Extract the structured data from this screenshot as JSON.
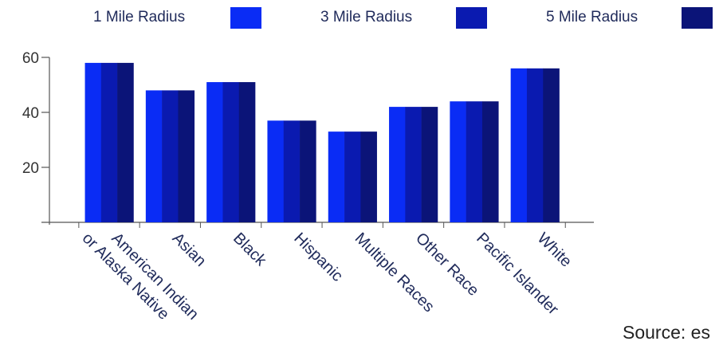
{
  "source_text": "Source: es",
  "colors": {
    "axis": "#555555",
    "text": "#1f2a5a"
  },
  "chart_data": {
    "type": "bar",
    "categories": [
      [
        "American Indian",
        "or Alaska Native"
      ],
      [
        "Asian"
      ],
      [
        "Black"
      ],
      [
        "Hispanic"
      ],
      [
        "Multiple Races"
      ],
      [
        "Other Race"
      ],
      [
        "Pacific Islander"
      ],
      [
        "White"
      ]
    ],
    "series": [
      {
        "name": "1 Mile Radius",
        "color": "#0a2cf5",
        "values": [
          58,
          48,
          51,
          37,
          33,
          42,
          44,
          56
        ]
      },
      {
        "name": "3 Mile Radius",
        "color": "#0a1ab0",
        "values": [
          58,
          48,
          51,
          37,
          33,
          42,
          44,
          56
        ]
      },
      {
        "name": "5 Mile Radius",
        "color": "#0b1478",
        "values": [
          58,
          48,
          51,
          37,
          33,
          42,
          44,
          56
        ]
      }
    ],
    "yticks": [
      20,
      40,
      60
    ],
    "ylim": [
      0,
      60
    ],
    "title": "",
    "xlabel": "",
    "ylabel": "",
    "grid": false,
    "legend": "top"
  }
}
